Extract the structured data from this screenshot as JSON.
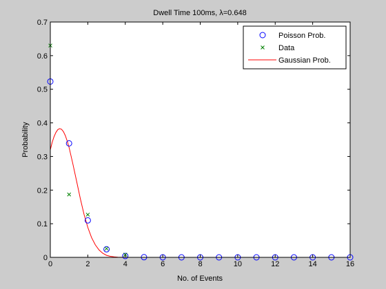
{
  "chart_data": {
    "type": "scatter",
    "title": "Dwell Time 100ms, λ=0.648",
    "xlabel": "No. of Events",
    "ylabel": "Probability",
    "xlim": [
      0,
      16
    ],
    "ylim": [
      0,
      0.7
    ],
    "xticks": [
      0,
      2,
      4,
      6,
      8,
      10,
      12,
      14,
      16
    ],
    "yticks": [
      0,
      0.1,
      0.2,
      0.3,
      0.4,
      0.5,
      0.6,
      0.7
    ],
    "grid": false,
    "legend_position": "top-right",
    "series": [
      {
        "name": "Poisson Prob.",
        "marker": "circle",
        "color": "#0000ff",
        "x": [
          0,
          1,
          2,
          3,
          4,
          5,
          6,
          7,
          8,
          9,
          10,
          11,
          12,
          13,
          14,
          15,
          16
        ],
        "y": [
          0.523,
          0.339,
          0.11,
          0.024,
          0.004,
          0.0005,
          0.0001,
          0,
          0,
          0,
          0,
          0,
          0,
          0,
          0,
          0,
          0
        ]
      },
      {
        "name": "Data",
        "marker": "x",
        "color": "#008000",
        "x": [
          0,
          1,
          2,
          3,
          4
        ],
        "y": [
          0.63,
          0.187,
          0.127,
          0.026,
          0.008
        ]
      },
      {
        "name": "Gaussian Prob.",
        "marker": "line",
        "color": "#ff0000",
        "x": [
          0,
          0.1,
          0.2,
          0.3,
          0.4,
          0.5,
          0.6,
          0.7,
          0.8,
          0.9,
          1.0,
          1.2,
          1.4,
          1.6,
          1.8,
          2.0,
          2.2,
          2.4,
          2.6,
          2.8,
          3.0,
          3.2,
          3.4,
          3.6,
          3.8,
          4.0,
          5.0,
          6.0,
          7.0,
          8.0,
          9.0,
          10.0
        ],
        "y": [
          0.32,
          0.342,
          0.359,
          0.372,
          0.38,
          0.383,
          0.381,
          0.374,
          0.362,
          0.346,
          0.327,
          0.279,
          0.227,
          0.175,
          0.128,
          0.089,
          0.059,
          0.037,
          0.022,
          0.012,
          0.006,
          0.003,
          0.0015,
          0.0007,
          0.0003,
          0.0001,
          0,
          0,
          0,
          0,
          0,
          0
        ]
      }
    ]
  }
}
